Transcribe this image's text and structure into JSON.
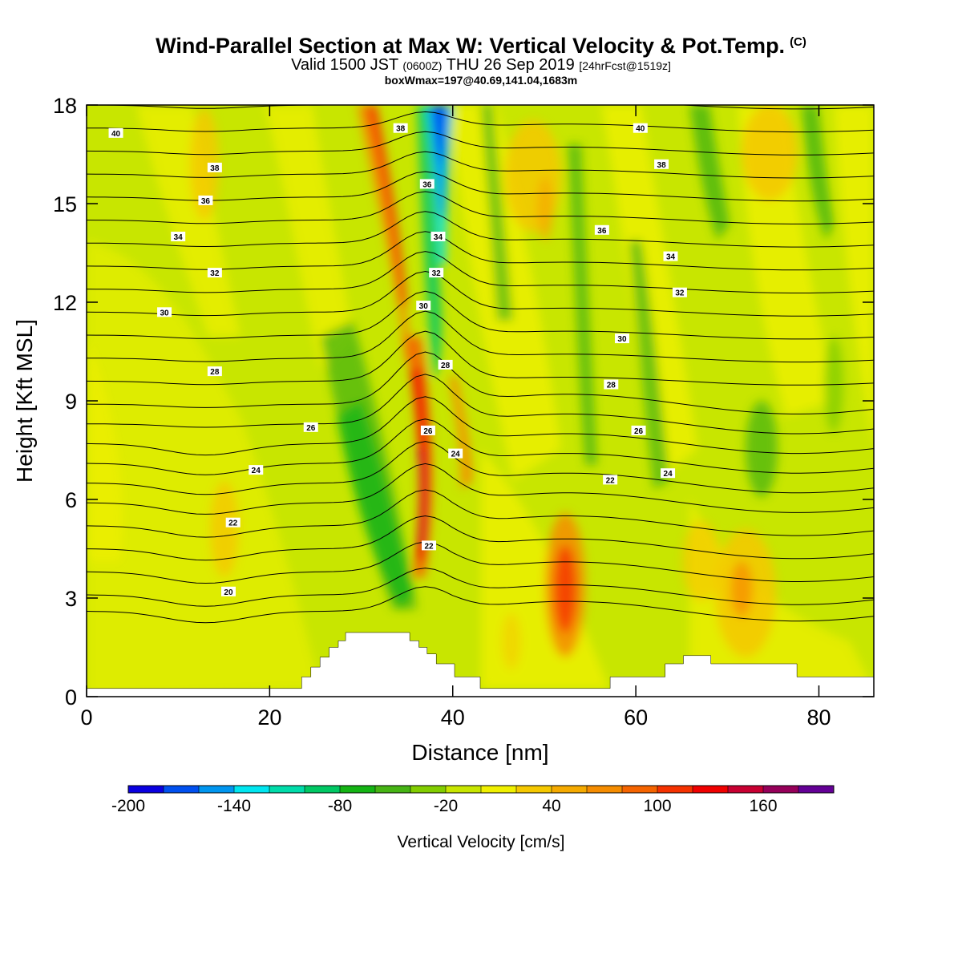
{
  "header": {
    "title_main": "Wind-Parallel Section at Max W: Vertical Velocity & Pot.Temp.",
    "title_mark": "(C)",
    "valid_a": "Valid 1500 JST",
    "valid_b": "(0600Z)",
    "valid_c": "THU 26 Sep 2019",
    "valid_d": "[24hrFcst@1519z]",
    "boxline": "boxWmax=197@40.69,141.04,1683m"
  },
  "chart_data": {
    "type": "heatmap",
    "xlabel": "Distance [nm]",
    "ylabel": "Height [Kft MSL]",
    "xlim": [
      0,
      86
    ],
    "ylim": [
      0,
      18
    ],
    "xticks": [
      0,
      20,
      40,
      60,
      80
    ],
    "yticks": [
      0,
      3,
      6,
      9,
      12,
      15,
      18
    ],
    "colorbar": {
      "label": "Vertical Velocity [cm/s]",
      "range": [
        -200,
        200
      ],
      "tick_labels": [
        "-200",
        "-140",
        "-80",
        "-20",
        "40",
        "100",
        "160"
      ],
      "tick_values": [
        -200,
        -140,
        -80,
        -20,
        40,
        100,
        160
      ],
      "colors": [
        "#0a00e0",
        "#0050f0",
        "#0096f0",
        "#00e6f0",
        "#00dcaa",
        "#00c864",
        "#14b414",
        "#46b414",
        "#82cd00",
        "#c8e600",
        "#f0f000",
        "#f5c800",
        "#f5aa00",
        "#f58c00",
        "#f56400",
        "#f53200",
        "#f00000",
        "#c80032",
        "#96005a",
        "#640096"
      ]
    },
    "terrain": [
      [
        0,
        0.25
      ],
      [
        23.5,
        0.25
      ],
      [
        23.5,
        0.6
      ],
      [
        24.5,
        0.6
      ],
      [
        24.5,
        0.9
      ],
      [
        25.5,
        0.9
      ],
      [
        25.5,
        1.2
      ],
      [
        26.5,
        1.2
      ],
      [
        26.5,
        1.5
      ],
      [
        27.5,
        1.5
      ],
      [
        27.5,
        1.7
      ],
      [
        28.3,
        1.7
      ],
      [
        28.3,
        1.95
      ],
      [
        35.3,
        1.95
      ],
      [
        35.3,
        1.7
      ],
      [
        36.3,
        1.7
      ],
      [
        36.3,
        1.5
      ],
      [
        37.2,
        1.5
      ],
      [
        37.2,
        1.3
      ],
      [
        38.2,
        1.3
      ],
      [
        38.2,
        1.0
      ],
      [
        40.2,
        1.0
      ],
      [
        40.2,
        0.6
      ],
      [
        43,
        0.6
      ],
      [
        43,
        0.25
      ],
      [
        57.2,
        0.25
      ],
      [
        57.2,
        0.6
      ],
      [
        63.2,
        0.6
      ],
      [
        63.2,
        1.0
      ],
      [
        65.2,
        1.0
      ],
      [
        65.2,
        1.25
      ],
      [
        68.2,
        1.25
      ],
      [
        68.2,
        1.0
      ],
      [
        77.6,
        1.0
      ],
      [
        77.6,
        0.6
      ],
      [
        86,
        0.6
      ]
    ],
    "theta_labels": [
      {
        "text": "40",
        "x": 3.2,
        "y": 17.15
      },
      {
        "text": "38",
        "x": 14,
        "y": 16.1
      },
      {
        "text": "36",
        "x": 13,
        "y": 15.1
      },
      {
        "text": "34",
        "x": 10,
        "y": 14
      },
      {
        "text": "32",
        "x": 14,
        "y": 12.9
      },
      {
        "text": "30",
        "x": 8.5,
        "y": 11.7
      },
      {
        "text": "28",
        "x": 14,
        "y": 9.9
      },
      {
        "text": "26",
        "x": 24.5,
        "y": 8.2
      },
      {
        "text": "24",
        "x": 18.5,
        "y": 6.9
      },
      {
        "text": "22",
        "x": 16,
        "y": 5.3
      },
      {
        "text": "20",
        "x": 15.5,
        "y": 3.2
      },
      {
        "text": "38",
        "x": 34.3,
        "y": 17.3
      },
      {
        "text": "36",
        "x": 37.2,
        "y": 15.6
      },
      {
        "text": "34",
        "x": 38.4,
        "y": 14
      },
      {
        "text": "32",
        "x": 38.2,
        "y": 12.9
      },
      {
        "text": "30",
        "x": 36.8,
        "y": 11.9
      },
      {
        "text": "28",
        "x": 39.2,
        "y": 10.1
      },
      {
        "text": "26",
        "x": 37.3,
        "y": 8.1
      },
      {
        "text": "24",
        "x": 40.3,
        "y": 7.4
      },
      {
        "text": "22",
        "x": 37.4,
        "y": 4.6
      },
      {
        "text": "40",
        "x": 60.5,
        "y": 17.3
      },
      {
        "text": "38",
        "x": 62.8,
        "y": 16.2
      },
      {
        "text": "36",
        "x": 56.3,
        "y": 14.2
      },
      {
        "text": "34",
        "x": 63.8,
        "y": 13.4
      },
      {
        "text": "32",
        "x": 64.8,
        "y": 12.3
      },
      {
        "text": "30",
        "x": 58.5,
        "y": 10.9
      },
      {
        "text": "28",
        "x": 57.3,
        "y": 9.5
      },
      {
        "text": "26",
        "x": 60.3,
        "y": 8.1
      },
      {
        "text": "24",
        "x": 63.5,
        "y": 6.8
      },
      {
        "text": "22",
        "x": 57.2,
        "y": 6.6
      }
    ]
  }
}
